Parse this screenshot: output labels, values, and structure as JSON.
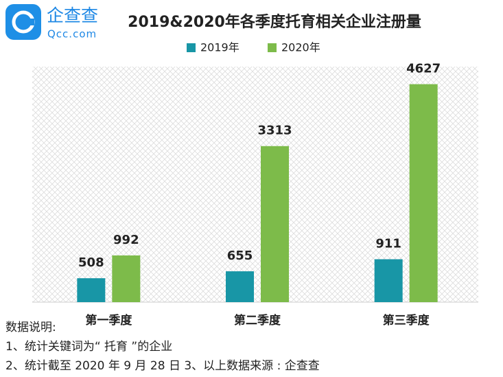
{
  "logo": {
    "name": "企查查",
    "domain": "Qcc.com"
  },
  "chart_data": {
    "type": "bar",
    "title": "2019&2020年各季度托育相关企业注册量",
    "categories": [
      "第一季度",
      "第二季度",
      "第三季度"
    ],
    "series": [
      {
        "name": "2019年",
        "color": "#1896a6",
        "values": [
          508,
          655,
          911
        ]
      },
      {
        "name": "2020年",
        "color": "#7dbb4a",
        "values": [
          992,
          3313,
          4627
        ]
      }
    ],
    "ylim": [
      0,
      5000
    ]
  },
  "notes": [
    "数据说明:",
    "1、统计关键词为“ 托育 ”的企业",
    "2、统计截至 2020 年 9 月 28 日 3、以上数据来源 : 企查查"
  ]
}
